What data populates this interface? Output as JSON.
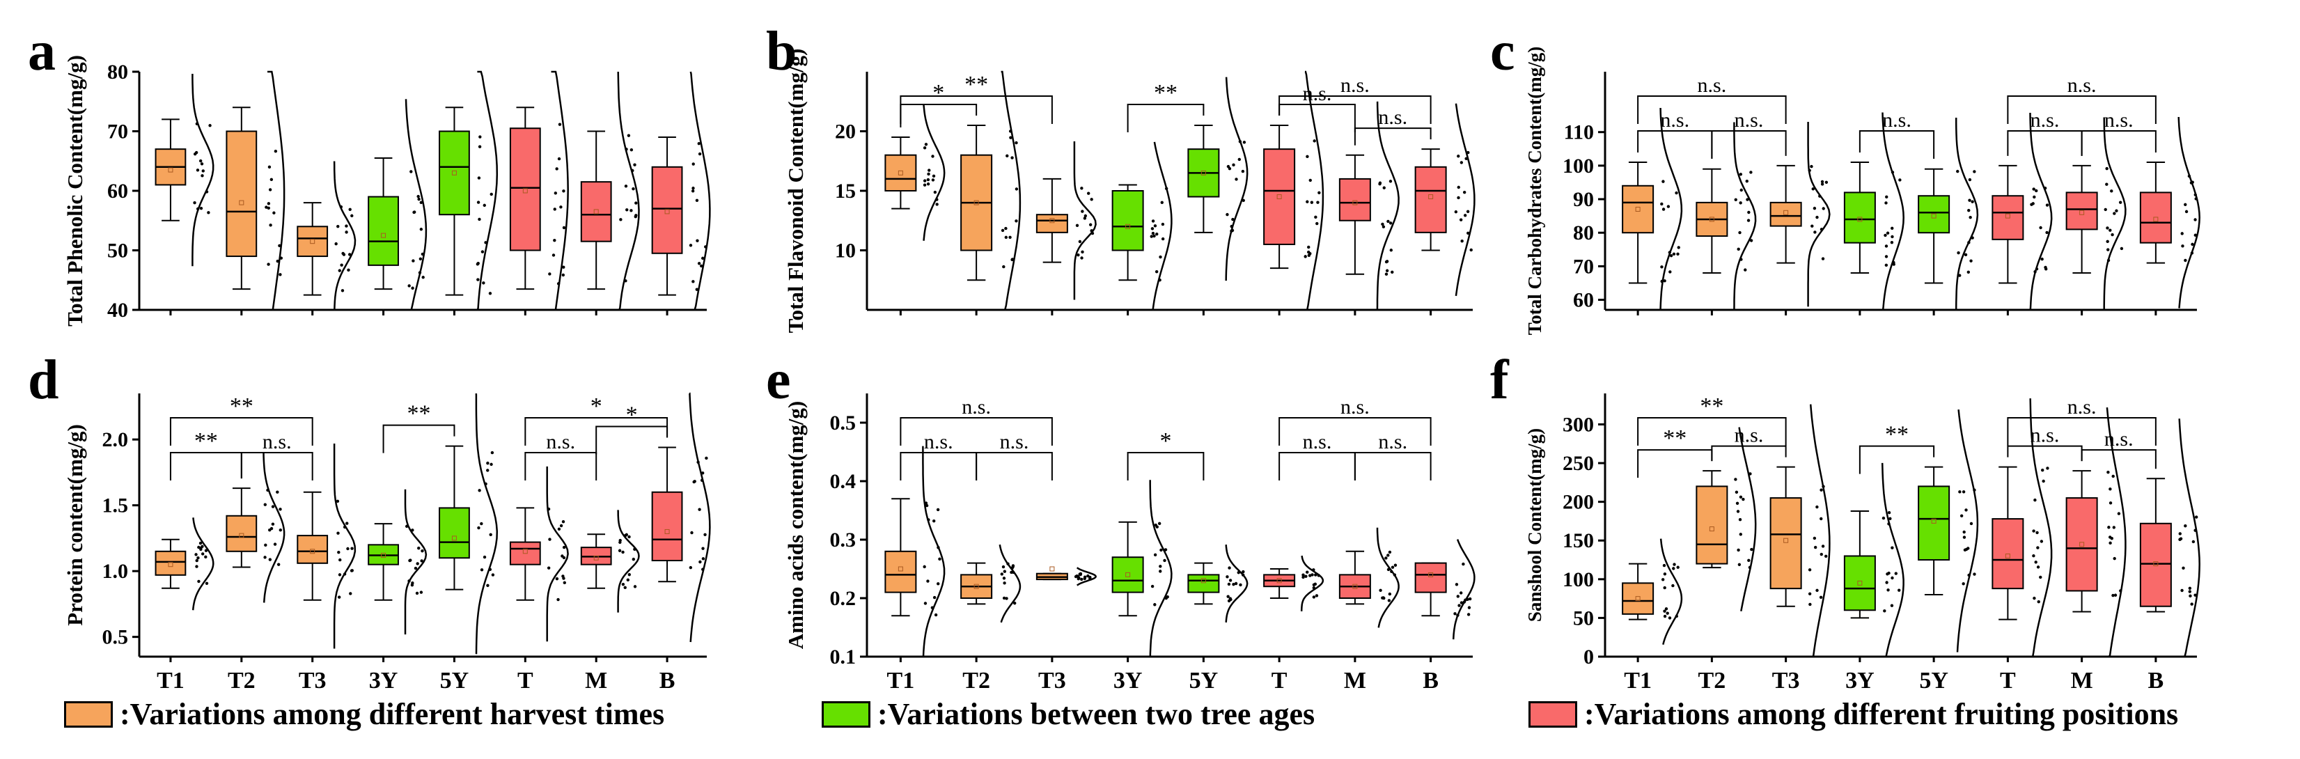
{
  "colors": {
    "harvest": "#f6a45c",
    "age": "#66e000",
    "position": "#f96a6a"
  },
  "legend": [
    {
      "color_key": "harvest",
      "label": ":Variations among different harvest times"
    },
    {
      "color_key": "age",
      "label": ":Variations between two tree ages"
    },
    {
      "color_key": "position",
      "label": ":Variations among different fruiting positions"
    }
  ],
  "chart_data": [
    {
      "panel": "a",
      "type": "box",
      "ylabel": "Total Phenolic Content(mg/g)",
      "ylim": [
        40,
        80
      ],
      "yticks": [
        40,
        50,
        60,
        70,
        80
      ],
      "categories": [
        "T1",
        "T2",
        "T3",
        "3Y",
        "5Y",
        "T",
        "M",
        "B"
      ],
      "groups": [
        "harvest",
        "harvest",
        "harvest",
        "age",
        "age",
        "position",
        "position",
        "position"
      ],
      "boxes": [
        {
          "q1": 61,
          "med": 64,
          "q3": 67,
          "min": 55,
          "max": 72,
          "mean": 63.5
        },
        {
          "q1": 49,
          "med": 56.5,
          "q3": 70,
          "min": 43.5,
          "max": 74,
          "mean": 58
        },
        {
          "q1": 49,
          "med": 52,
          "q3": 54,
          "min": 42.5,
          "max": 58,
          "mean": 51.5
        },
        {
          "q1": 47.5,
          "med": 51.5,
          "q3": 59,
          "min": 43.5,
          "max": 65.5,
          "mean": 52.5
        },
        {
          "q1": 56,
          "med": 64,
          "q3": 70,
          "min": 42.5,
          "max": 74,
          "mean": 63
        },
        {
          "q1": 50,
          "med": 60.5,
          "q3": 70.5,
          "min": 43.5,
          "max": 74,
          "mean": 60
        },
        {
          "q1": 51.5,
          "med": 56,
          "q3": 61.5,
          "min": 43.5,
          "max": 70,
          "mean": 56.5
        },
        {
          "q1": 49.5,
          "med": 57,
          "q3": 64,
          "min": 42.5,
          "max": 69,
          "mean": 56.5
        }
      ],
      "brackets": []
    },
    {
      "panel": "b",
      "type": "box",
      "ylabel": "Total Flavonoid Content(mg/g)",
      "ylim": [
        5,
        25
      ],
      "yticks": [
        10,
        15,
        20
      ],
      "categories": [
        "T1",
        "T2",
        "T3",
        "3Y",
        "5Y",
        "T",
        "M",
        "B"
      ],
      "groups": [
        "harvest",
        "harvest",
        "harvest",
        "age",
        "age",
        "position",
        "position",
        "position"
      ],
      "boxes": [
        {
          "q1": 15,
          "med": 16,
          "q3": 18,
          "min": 13.5,
          "max": 19.5,
          "mean": 16.5
        },
        {
          "q1": 10,
          "med": 14,
          "q3": 18,
          "min": 7.5,
          "max": 20.5,
          "mean": 14
        },
        {
          "q1": 11.5,
          "med": 12.5,
          "q3": 13,
          "min": 9,
          "max": 16,
          "mean": 12.5
        },
        {
          "q1": 10,
          "med": 12,
          "q3": 15,
          "min": 7.5,
          "max": 15.5,
          "mean": 12
        },
        {
          "q1": 14.5,
          "med": 16.5,
          "q3": 18.5,
          "min": 11.5,
          "max": 20.5,
          "mean": 16.5
        },
        {
          "q1": 10.5,
          "med": 15,
          "q3": 18.5,
          "min": 8.5,
          "max": 20.5,
          "mean": 14.5
        },
        {
          "q1": 12.5,
          "med": 14,
          "q3": 16,
          "min": 8,
          "max": 18,
          "mean": 14
        },
        {
          "q1": 11.5,
          "med": 15,
          "q3": 17,
          "min": 10,
          "max": 18.5,
          "mean": 14.5
        }
      ],
      "brackets": [
        {
          "from": 0,
          "to": 1,
          "label": "*",
          "level": 0
        },
        {
          "from": 0,
          "to": 2,
          "label": "**",
          "level": 1
        },
        {
          "from": 3,
          "to": 4,
          "label": "**",
          "level": 0
        },
        {
          "from": 5,
          "to": 6,
          "label": "n.s.",
          "level": 0
        },
        {
          "from": 6,
          "to": 7,
          "label": "n.s.",
          "level": 0
        },
        {
          "from": 5,
          "to": 7,
          "label": "n.s.",
          "level": 1
        }
      ]
    },
    {
      "panel": "c",
      "type": "box",
      "ylabel": "Total Carbohydrates Content(mg/g)",
      "ylim": [
        57,
        128
      ],
      "yticks": [
        60,
        70,
        80,
        90,
        100,
        110
      ],
      "categories": [
        "T1",
        "T2",
        "T3",
        "3Y",
        "5Y",
        "T",
        "M",
        "B"
      ],
      "groups": [
        "harvest",
        "harvest",
        "harvest",
        "age",
        "age",
        "position",
        "position",
        "position"
      ],
      "boxes": [
        {
          "q1": 80,
          "med": 89,
          "q3": 94,
          "min": 65,
          "max": 101,
          "mean": 87
        },
        {
          "q1": 79,
          "med": 84,
          "q3": 89,
          "min": 68,
          "max": 99,
          "mean": 84
        },
        {
          "q1": 82,
          "med": 85,
          "q3": 89,
          "min": 71,
          "max": 100,
          "mean": 86
        },
        {
          "q1": 77,
          "med": 84,
          "q3": 92,
          "min": 68,
          "max": 101,
          "mean": 84
        },
        {
          "q1": 80,
          "med": 86,
          "q3": 91,
          "min": 65,
          "max": 99,
          "mean": 85
        },
        {
          "q1": 78,
          "med": 86,
          "q3": 91,
          "min": 65,
          "max": 100,
          "mean": 85
        },
        {
          "q1": 81,
          "med": 87,
          "q3": 92,
          "min": 68,
          "max": 100,
          "mean": 86
        },
        {
          "q1": 77,
          "med": 83,
          "q3": 92,
          "min": 71,
          "max": 101,
          "mean": 84
        }
      ],
      "brackets": [
        {
          "from": 0,
          "to": 1,
          "label": "n.s.",
          "level": 0
        },
        {
          "from": 1,
          "to": 2,
          "label": "n.s.",
          "level": 0
        },
        {
          "from": 0,
          "to": 2,
          "label": "n.s.",
          "level": 1
        },
        {
          "from": 3,
          "to": 4,
          "label": "n.s.",
          "level": 0
        },
        {
          "from": 5,
          "to": 6,
          "label": "n.s.",
          "level": 0
        },
        {
          "from": 6,
          "to": 7,
          "label": "n.s.",
          "level": 0
        },
        {
          "from": 5,
          "to": 7,
          "label": "n.s.",
          "level": 1
        }
      ]
    },
    {
      "panel": "d",
      "type": "box",
      "ylabel": "Protein content(mg/g)",
      "ylim": [
        0.35,
        2.35
      ],
      "yticks": [
        0.5,
        1.0,
        1.5,
        2.0
      ],
      "tick_format": 1,
      "categories": [
        "T1",
        "T2",
        "T3",
        "3Y",
        "5Y",
        "T",
        "M",
        "B"
      ],
      "groups": [
        "harvest",
        "harvest",
        "harvest",
        "age",
        "age",
        "position",
        "position",
        "position"
      ],
      "boxes": [
        {
          "q1": 0.97,
          "med": 1.07,
          "q3": 1.15,
          "min": 0.87,
          "max": 1.24,
          "mean": 1.05
        },
        {
          "q1": 1.15,
          "med": 1.26,
          "q3": 1.42,
          "min": 1.03,
          "max": 1.63,
          "mean": 1.27
        },
        {
          "q1": 1.06,
          "med": 1.15,
          "q3": 1.27,
          "min": 0.78,
          "max": 1.6,
          "mean": 1.15
        },
        {
          "q1": 1.05,
          "med": 1.12,
          "q3": 1.2,
          "min": 0.78,
          "max": 1.36,
          "mean": 1.12
        },
        {
          "q1": 1.1,
          "med": 1.22,
          "q3": 1.48,
          "min": 0.86,
          "max": 1.95,
          "mean": 1.25
        },
        {
          "q1": 1.05,
          "med": 1.17,
          "q3": 1.22,
          "min": 0.78,
          "max": 1.48,
          "mean": 1.15
        },
        {
          "q1": 1.05,
          "med": 1.11,
          "q3": 1.18,
          "min": 0.87,
          "max": 1.28,
          "mean": 1.1
        },
        {
          "q1": 1.08,
          "med": 1.24,
          "q3": 1.6,
          "min": 0.92,
          "max": 1.94,
          "mean": 1.3
        }
      ],
      "brackets": [
        {
          "from": 0,
          "to": 1,
          "label": "**",
          "level": 0
        },
        {
          "from": 1,
          "to": 2,
          "label": "n.s.",
          "level": 0
        },
        {
          "from": 0,
          "to": 2,
          "label": "**",
          "level": 1
        },
        {
          "from": 3,
          "to": 4,
          "label": "**",
          "level": 0
        },
        {
          "from": 5,
          "to": 6,
          "label": "n.s.",
          "level": 0
        },
        {
          "from": 6,
          "to": 7,
          "label": "*",
          "level": 0
        },
        {
          "from": 5,
          "to": 7,
          "label": "*",
          "level": 1
        }
      ]
    },
    {
      "panel": "e",
      "type": "box",
      "ylabel": "Amino acids content(mg/g)",
      "ylim": [
        0.1,
        0.55
      ],
      "yticks": [
        0.1,
        0.2,
        0.3,
        0.4,
        0.5
      ],
      "tick_format": 1,
      "categories": [
        "T1",
        "T2",
        "T3",
        "3Y",
        "5Y",
        "T",
        "M",
        "B"
      ],
      "groups": [
        "harvest",
        "harvest",
        "harvest",
        "age",
        "age",
        "position",
        "position",
        "position"
      ],
      "boxes": [
        {
          "q1": 0.21,
          "med": 0.24,
          "q3": 0.28,
          "min": 0.17,
          "max": 0.37,
          "mean": 0.25
        },
        {
          "q1": 0.2,
          "med": 0.22,
          "q3": 0.24,
          "min": 0.19,
          "max": 0.26,
          "mean": 0.22
        },
        {
          "q1": 0.232,
          "med": 0.236,
          "q3": 0.242,
          "min": 0.232,
          "max": 0.242,
          "mean": 0.25
        },
        {
          "q1": 0.21,
          "med": 0.23,
          "q3": 0.27,
          "min": 0.17,
          "max": 0.33,
          "mean": 0.24
        },
        {
          "q1": 0.21,
          "med": 0.23,
          "q3": 0.24,
          "min": 0.19,
          "max": 0.26,
          "mean": 0.23
        },
        {
          "q1": 0.22,
          "med": 0.23,
          "q3": 0.24,
          "min": 0.2,
          "max": 0.25,
          "mean": 0.23
        },
        {
          "q1": 0.2,
          "med": 0.22,
          "q3": 0.24,
          "min": 0.19,
          "max": 0.28,
          "mean": 0.22
        },
        {
          "q1": 0.21,
          "med": 0.24,
          "q3": 0.26,
          "min": 0.17,
          "max": 0.26,
          "mean": 0.24
        }
      ],
      "brackets": [
        {
          "from": 0,
          "to": 1,
          "label": "n.s.",
          "level": 0
        },
        {
          "from": 1,
          "to": 2,
          "label": "n.s.",
          "level": 0
        },
        {
          "from": 0,
          "to": 2,
          "label": "n.s.",
          "level": 1
        },
        {
          "from": 3,
          "to": 4,
          "label": "*",
          "level": 0
        },
        {
          "from": 5,
          "to": 6,
          "label": "n.s.",
          "level": 0
        },
        {
          "from": 6,
          "to": 7,
          "label": "n.s.",
          "level": 0
        },
        {
          "from": 5,
          "to": 7,
          "label": "n.s.",
          "level": 1
        }
      ]
    },
    {
      "panel": "f",
      "type": "box",
      "ylabel": "Sanshool Content(mg/g)",
      "ylim": [
        0,
        340
      ],
      "yticks": [
        0,
        50,
        100,
        150,
        200,
        250,
        300
      ],
      "categories": [
        "T1",
        "T2",
        "T3",
        "3Y",
        "5Y",
        "T",
        "M",
        "B"
      ],
      "groups": [
        "harvest",
        "harvest",
        "harvest",
        "age",
        "age",
        "position",
        "position",
        "position"
      ],
      "boxes": [
        {
          "q1": 55,
          "med": 72,
          "q3": 95,
          "min": 48,
          "max": 120,
          "mean": 75
        },
        {
          "q1": 120,
          "med": 145,
          "q3": 220,
          "min": 115,
          "max": 240,
          "mean": 165
        },
        {
          "q1": 88,
          "med": 158,
          "q3": 205,
          "min": 65,
          "max": 245,
          "mean": 150
        },
        {
          "q1": 60,
          "med": 88,
          "q3": 130,
          "min": 50,
          "max": 188,
          "mean": 95
        },
        {
          "q1": 125,
          "med": 178,
          "q3": 220,
          "min": 80,
          "max": 245,
          "mean": 175
        },
        {
          "q1": 88,
          "med": 125,
          "q3": 178,
          "min": 48,
          "max": 245,
          "mean": 130
        },
        {
          "q1": 85,
          "med": 140,
          "q3": 205,
          "min": 58,
          "max": 240,
          "mean": 145
        },
        {
          "q1": 65,
          "med": 120,
          "q3": 172,
          "min": 58,
          "max": 230,
          "mean": 120
        }
      ],
      "brackets": [
        {
          "from": 0,
          "to": 1,
          "label": "**",
          "level": 0
        },
        {
          "from": 1,
          "to": 2,
          "label": "n.s.",
          "level": 0
        },
        {
          "from": 0,
          "to": 2,
          "label": "**",
          "level": 1
        },
        {
          "from": 3,
          "to": 4,
          "label": "**",
          "level": 0
        },
        {
          "from": 5,
          "to": 6,
          "label": "n.s.",
          "level": 0
        },
        {
          "from": 6,
          "to": 7,
          "label": "n.s.",
          "level": 0
        },
        {
          "from": 5,
          "to": 7,
          "label": "n.s.",
          "level": 1
        }
      ]
    }
  ]
}
